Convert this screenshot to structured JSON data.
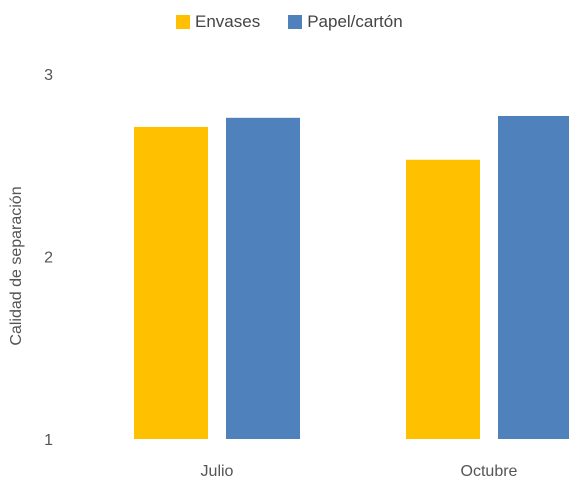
{
  "chart_data": {
    "type": "bar",
    "categories": [
      "Julio",
      "Octubre"
    ],
    "series": [
      {
        "name": "Envases",
        "values": [
          2.71,
          2.53
        ]
      },
      {
        "name": "Papel/cartón",
        "values": [
          2.76,
          2.77
        ]
      }
    ],
    "title": "",
    "xlabel": "",
    "ylabel": "Calidad de separación",
    "ylim": [
      1,
      3
    ],
    "yticks": [
      "1",
      "2",
      "3"
    ],
    "grid": false,
    "legend": "top-center",
    "colors": [
      "#FFC000",
      "#4F81BD"
    ]
  }
}
